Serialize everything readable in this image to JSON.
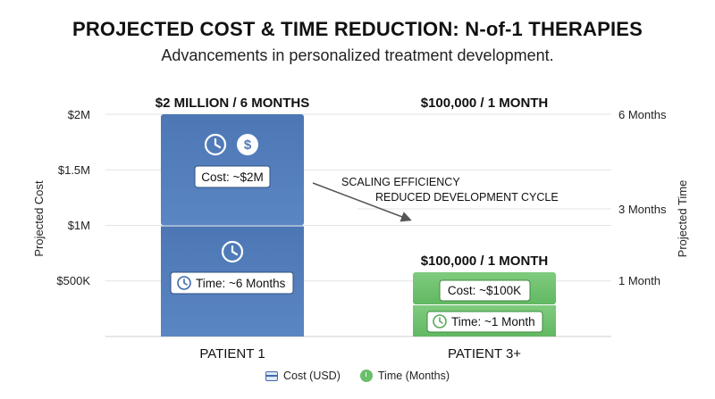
{
  "header": {
    "title": "PROJECTED COST & TIME REDUCTION: N-of-1 THERAPIES",
    "subtitle": "Advancements in personalized treatment development."
  },
  "chart_data": {
    "type": "bar",
    "categories": [
      "PATIENT 1",
      "PATIENT 3+"
    ],
    "bar_headers": [
      "$2 MILLION / 6 MONTHS",
      "$100,000 / 1 MONTH"
    ],
    "top_header_right": "$100,000 / 1 MONTH",
    "series": [
      {
        "name": "Cost (USD)",
        "values": [
          2000000,
          100000
        ],
        "labels": [
          "Cost: ~$2M",
          "Cost: ~$100K"
        ]
      },
      {
        "name": "Time (Months)",
        "values": [
          6,
          1
        ],
        "labels": [
          "Time: ~6 Months",
          "Time: ~1 Month"
        ]
      }
    ],
    "y_left": {
      "label": "Projected Cost",
      "ticks": [
        "$2M",
        "$1.5M",
        "$1M",
        "$500K"
      ],
      "tick_values": [
        2000000,
        1500000,
        1000000,
        500000
      ],
      "range": [
        0,
        2000000
      ]
    },
    "y_right": {
      "label": "Projected Time",
      "ticks": [
        "6 Months",
        "3 Months",
        "1 Month"
      ],
      "tick_values": [
        6,
        3,
        1
      ]
    },
    "annotations": [
      "SCALING EFFICIENCY",
      "REDUCED DEVELOPMENT CYCLE"
    ],
    "grid": true,
    "legend": {
      "position": "bottom"
    },
    "colors": {
      "cost": "#4f79b5",
      "time": "#6abf6a",
      "cost_dark": "#3f6aa8"
    }
  }
}
